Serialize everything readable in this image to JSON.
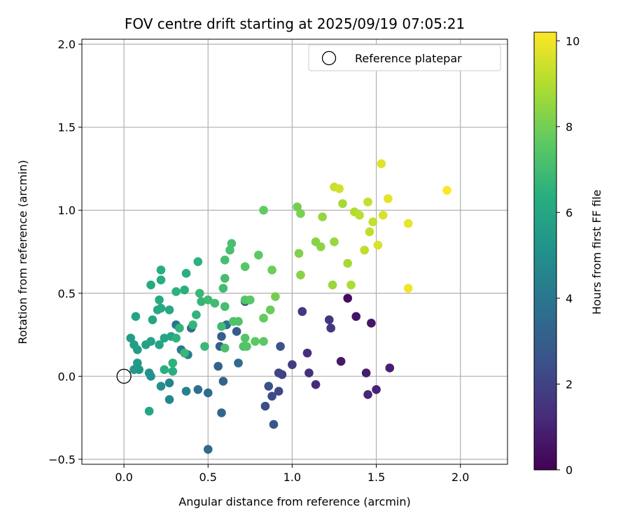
{
  "chart_data": {
    "type": "scatter",
    "title": "FOV centre drift starting at 2025/09/19 07:05:21",
    "xlabel": "Angular distance from reference (arcmin)",
    "ylabel": "Rotation from reference (arcmin)",
    "xlim": [
      -0.25,
      2.28
    ],
    "ylim": [
      -0.53,
      2.03
    ],
    "xticks": [
      0.0,
      0.5,
      1.0,
      1.5,
      2.0
    ],
    "xtick_labels": [
      "0.0",
      "0.5",
      "1.0",
      "1.5",
      "2.0"
    ],
    "yticks": [
      -0.5,
      0.0,
      0.5,
      1.0,
      1.5,
      2.0
    ],
    "ytick_labels": [
      "−0.5",
      "0.0",
      "0.5",
      "1.0",
      "1.5",
      "2.0"
    ],
    "grid": true,
    "legend": {
      "position": "top-right",
      "entries": [
        "Reference platepar"
      ]
    },
    "reference_point": {
      "x": 0.0,
      "y": 0.0,
      "label": "Reference platepar"
    },
    "colorbar": {
      "label": "Hours from first FF file",
      "colormap": "viridis",
      "range": [
        0,
        10.2
      ],
      "ticks": [
        0,
        2,
        4,
        6,
        8,
        10
      ],
      "tick_labels": [
        "0",
        "2",
        "4",
        "6",
        "8",
        "10"
      ]
    },
    "series": [
      {
        "name": "FOV centre",
        "columns": [
          "x",
          "y",
          "hours"
        ],
        "points": [
          [
            1.33,
            0.47,
            0.3
          ],
          [
            1.38,
            0.36,
            0.5
          ],
          [
            1.47,
            0.32,
            0.6
          ],
          [
            1.29,
            0.09,
            0.7
          ],
          [
            1.44,
            0.02,
            0.8
          ],
          [
            1.58,
            0.05,
            0.9
          ],
          [
            1.5,
            -0.08,
            1.0
          ],
          [
            1.45,
            -0.11,
            1.1
          ],
          [
            1.14,
            -0.05,
            1.2
          ],
          [
            1.09,
            0.14,
            1.3
          ],
          [
            1.1,
            0.02,
            1.4
          ],
          [
            1.22,
            0.34,
            1.5
          ],
          [
            1.23,
            0.29,
            1.6
          ],
          [
            1.06,
            0.39,
            1.7
          ],
          [
            1.0,
            0.07,
            1.8
          ],
          [
            0.94,
            0.01,
            2.0
          ],
          [
            0.92,
            0.02,
            2.1
          ],
          [
            0.92,
            -0.09,
            2.2
          ],
          [
            0.88,
            -0.12,
            2.3
          ],
          [
            0.84,
            -0.18,
            2.4
          ],
          [
            0.86,
            -0.06,
            2.5
          ],
          [
            0.93,
            0.18,
            2.6
          ],
          [
            0.89,
            -0.29,
            2.7
          ],
          [
            0.72,
            0.45,
            2.8
          ],
          [
            0.67,
            0.27,
            2.9
          ],
          [
            0.58,
            0.24,
            3.0
          ],
          [
            0.57,
            0.18,
            3.1
          ],
          [
            0.56,
            0.06,
            3.2
          ],
          [
            0.59,
            -0.03,
            3.3
          ],
          [
            0.58,
            -0.22,
            3.4
          ],
          [
            0.5,
            -0.44,
            3.5
          ],
          [
            0.5,
            -0.1,
            3.6
          ],
          [
            0.44,
            -0.08,
            3.7
          ],
          [
            0.4,
            0.29,
            3.8
          ],
          [
            0.31,
            0.31,
            3.9
          ],
          [
            0.34,
            0.16,
            4.1
          ],
          [
            0.38,
            0.13,
            4.3
          ],
          [
            0.37,
            -0.09,
            4.4
          ],
          [
            0.27,
            -0.04,
            4.6
          ],
          [
            0.27,
            -0.14,
            4.7
          ],
          [
            0.61,
            0.31,
            3.8
          ],
          [
            0.68,
            0.08,
            3.6
          ],
          [
            0.22,
            -0.06,
            5.0
          ],
          [
            0.16,
            0.0,
            5.1
          ],
          [
            0.15,
            0.02,
            5.2
          ],
          [
            0.09,
            0.04,
            5.3
          ],
          [
            0.06,
            0.04,
            5.4
          ],
          [
            0.08,
            0.08,
            5.5
          ],
          [
            0.08,
            0.16,
            5.6
          ],
          [
            0.04,
            0.23,
            5.6
          ],
          [
            0.06,
            0.19,
            5.7
          ],
          [
            0.13,
            0.19,
            5.8
          ],
          [
            0.16,
            0.21,
            5.9
          ],
          [
            0.21,
            0.19,
            5.9
          ],
          [
            0.24,
            0.23,
            6.0
          ],
          [
            0.28,
            0.24,
            6.0
          ],
          [
            0.17,
            0.34,
            6.0
          ],
          [
            0.2,
            0.4,
            6.1
          ],
          [
            0.22,
            0.41,
            6.1
          ],
          [
            0.27,
            0.4,
            6.1
          ],
          [
            0.07,
            0.36,
            5.9
          ],
          [
            0.21,
            0.46,
            6.2
          ],
          [
            0.16,
            0.55,
            6.2
          ],
          [
            0.22,
            0.58,
            6.3
          ],
          [
            0.22,
            0.64,
            6.3
          ],
          [
            0.24,
            0.04,
            6.4
          ],
          [
            0.29,
            0.03,
            6.4
          ],
          [
            0.29,
            0.08,
            6.5
          ],
          [
            0.15,
            -0.21,
            6.0
          ],
          [
            0.37,
            0.62,
            6.4
          ],
          [
            0.36,
            0.52,
            6.4
          ],
          [
            0.31,
            0.51,
            6.5
          ],
          [
            0.31,
            0.23,
            6.5
          ],
          [
            0.33,
            0.29,
            6.6
          ],
          [
            0.44,
            0.69,
            6.5
          ],
          [
            0.43,
            0.37,
            6.6
          ],
          [
            0.41,
            0.31,
            6.7
          ],
          [
            0.46,
            0.45,
            6.7
          ],
          [
            0.45,
            0.5,
            6.8
          ],
          [
            0.36,
            0.14,
            6.8
          ],
          [
            0.48,
            0.18,
            6.9
          ],
          [
            0.5,
            0.46,
            6.9
          ],
          [
            0.54,
            0.44,
            7.0
          ],
          [
            0.58,
            0.3,
            7.0
          ],
          [
            0.59,
            0.53,
            7.0
          ],
          [
            0.6,
            0.42,
            7.1
          ],
          [
            0.6,
            0.59,
            7.1
          ],
          [
            0.6,
            0.7,
            7.1
          ],
          [
            0.63,
            0.76,
            7.2
          ],
          [
            0.64,
            0.8,
            7.2
          ],
          [
            0.6,
            0.17,
            7.2
          ],
          [
            0.65,
            0.33,
            7.3
          ],
          [
            0.68,
            0.33,
            7.3
          ],
          [
            0.71,
            0.18,
            7.3
          ],
          [
            0.73,
            0.18,
            7.4
          ],
          [
            0.72,
            0.23,
            7.4
          ],
          [
            0.72,
            0.46,
            7.4
          ],
          [
            0.75,
            0.46,
            7.5
          ],
          [
            0.72,
            0.66,
            7.5
          ],
          [
            0.8,
            0.73,
            7.6
          ],
          [
            0.78,
            0.21,
            7.6
          ],
          [
            0.83,
            0.21,
            7.6
          ],
          [
            0.83,
            0.35,
            7.7
          ],
          [
            0.83,
            1.0,
            7.7
          ],
          [
            0.87,
            0.4,
            7.8
          ],
          [
            0.88,
            0.64,
            7.9
          ],
          [
            0.9,
            0.48,
            8.0
          ],
          [
            1.03,
            1.02,
            8.0
          ],
          [
            1.05,
            0.98,
            8.1
          ],
          [
            1.04,
            0.74,
            8.2
          ],
          [
            1.05,
            0.61,
            8.3
          ],
          [
            1.14,
            0.81,
            8.3
          ],
          [
            1.17,
            0.78,
            8.4
          ],
          [
            1.18,
            0.96,
            8.5
          ],
          [
            1.24,
            0.55,
            8.6
          ],
          [
            1.25,
            0.81,
            8.6
          ],
          [
            1.3,
            1.04,
            8.8
          ],
          [
            1.33,
            0.68,
            8.8
          ],
          [
            1.35,
            0.55,
            8.9
          ],
          [
            1.37,
            0.99,
            9.0
          ],
          [
            1.4,
            0.97,
            9.1
          ],
          [
            1.43,
            0.76,
            9.2
          ],
          [
            1.46,
            0.87,
            9.2
          ],
          [
            1.45,
            1.05,
            9.3
          ],
          [
            1.48,
            0.93,
            9.3
          ],
          [
            1.25,
            1.14,
            9.4
          ],
          [
            1.28,
            1.13,
            9.5
          ],
          [
            1.51,
            0.79,
            9.6
          ],
          [
            1.54,
            0.97,
            9.6
          ],
          [
            1.53,
            1.28,
            9.7
          ],
          [
            1.57,
            1.07,
            9.8
          ],
          [
            1.69,
            0.92,
            9.9
          ],
          [
            1.69,
            0.53,
            10.0
          ],
          [
            1.92,
            1.12,
            10.2
          ]
        ]
      }
    ]
  }
}
